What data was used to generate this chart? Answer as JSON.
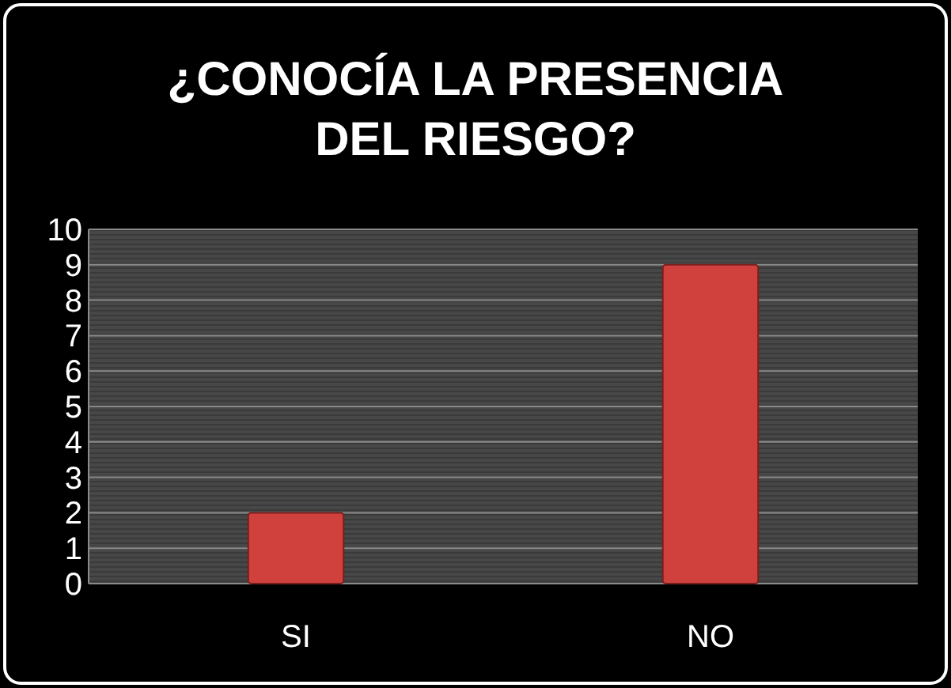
{
  "chart_data": {
    "type": "bar",
    "title": "¿CONOCÍA LA PRESENCIA\nDEL RIESGO?",
    "categories": [
      "SI",
      "NO"
    ],
    "values": [
      2,
      9
    ],
    "color": "#d0403c",
    "ylim": [
      0,
      10
    ],
    "yticks": [
      0,
      1,
      2,
      3,
      4,
      5,
      6,
      7,
      8,
      9,
      10
    ],
    "grid": "y"
  }
}
